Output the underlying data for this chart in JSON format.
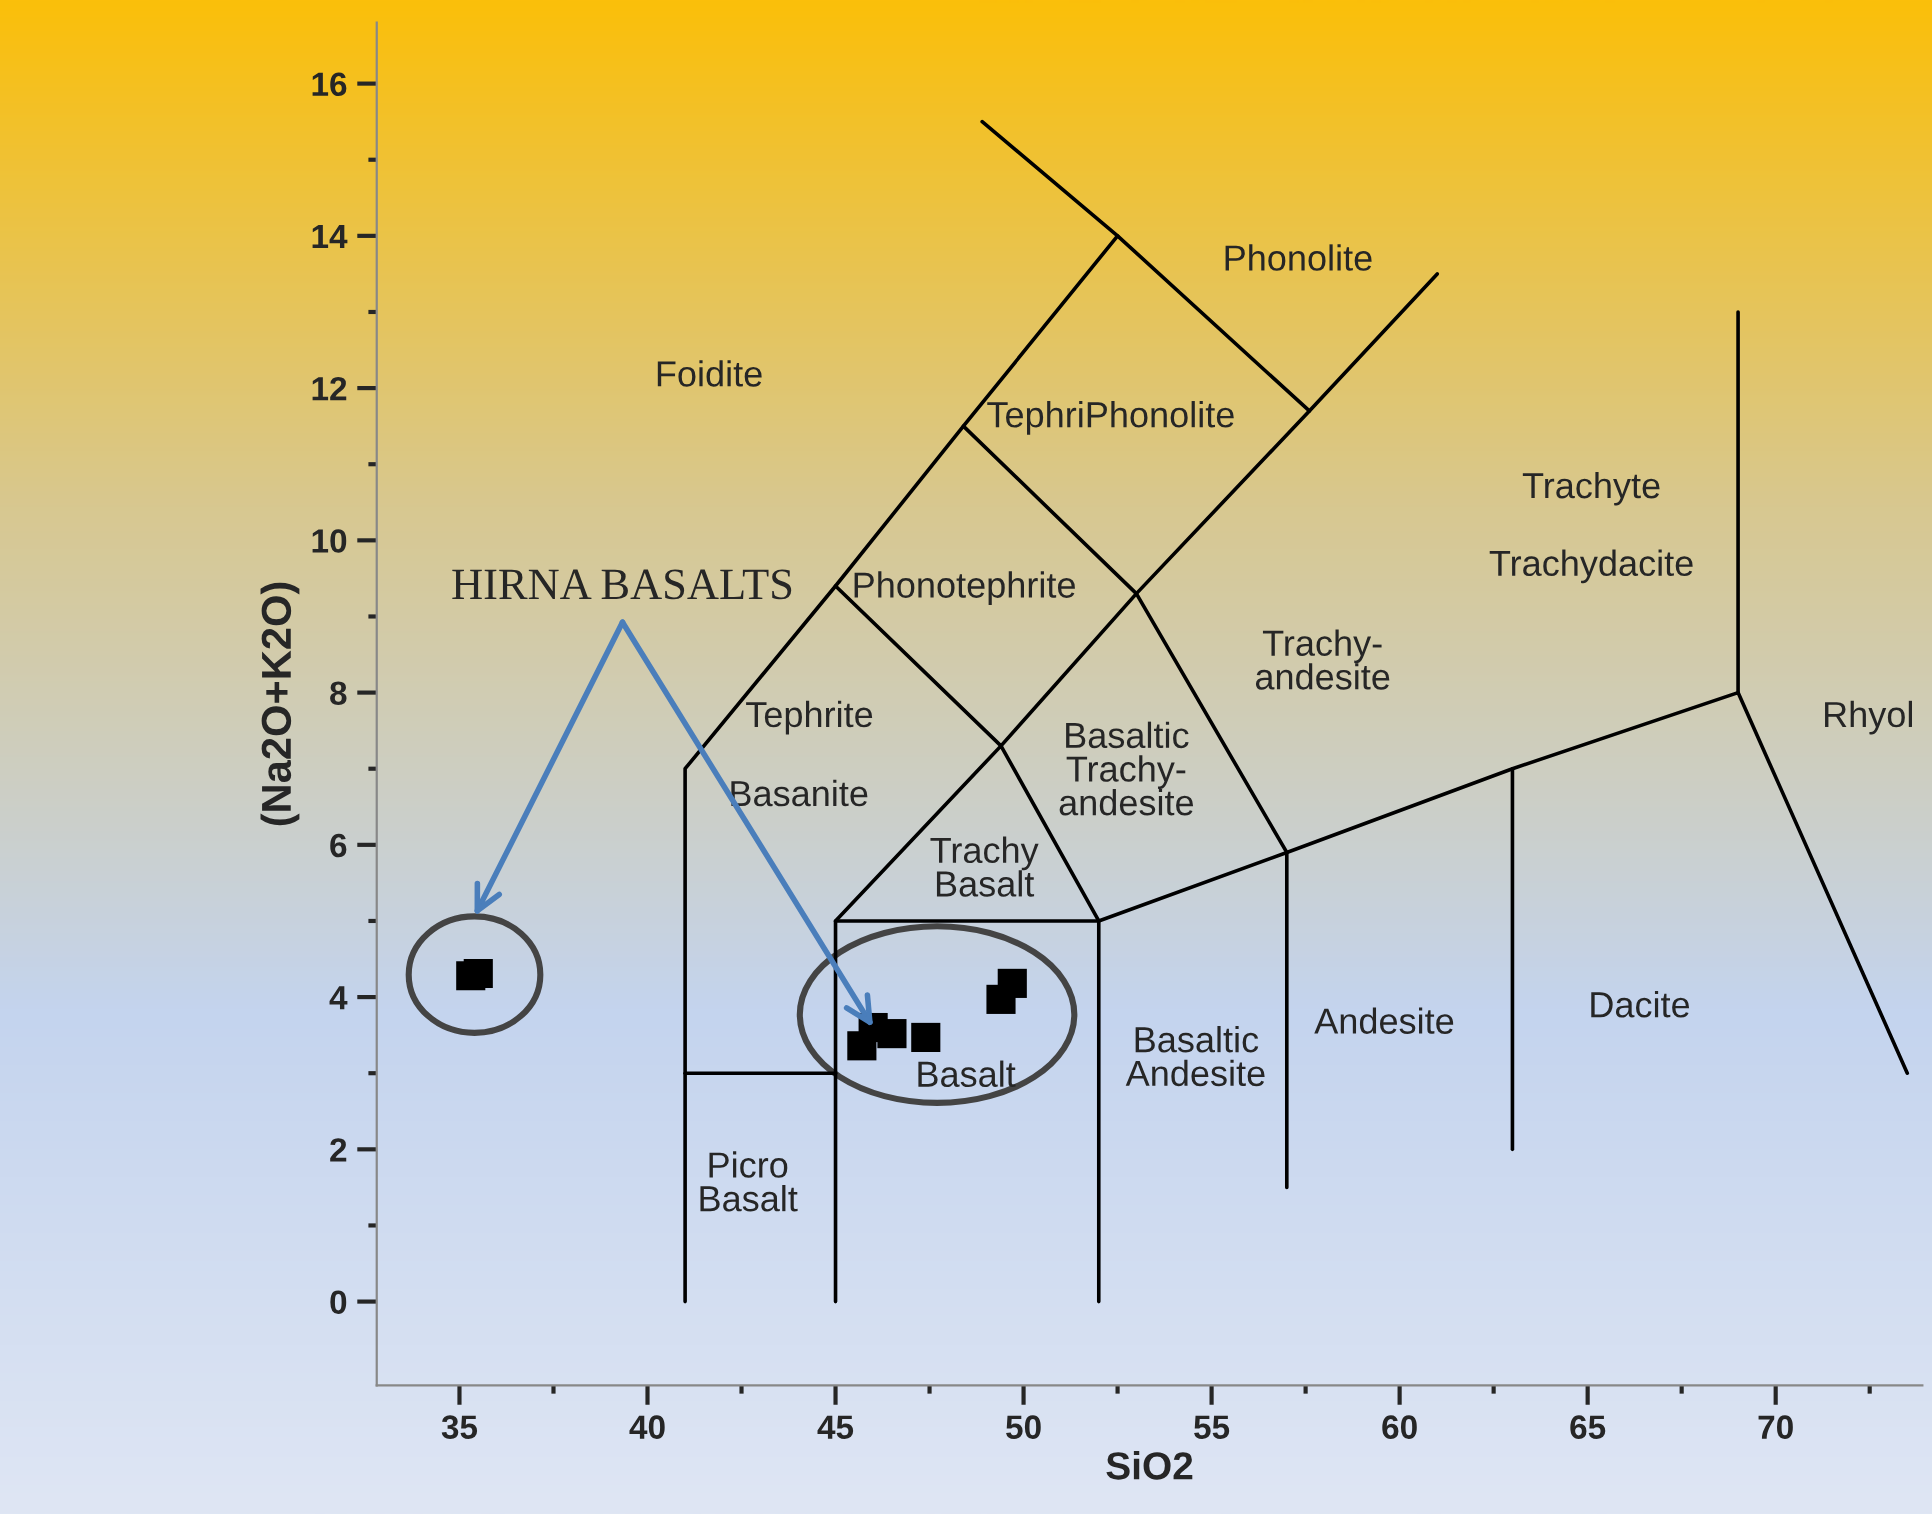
{
  "chart_data": {
    "type": "scatter",
    "xlabel": "SiO2",
    "ylabel": "(Na2O+K2O)",
    "xlim": [
      32.8,
      73.9
    ],
    "ylim": [
      -1.1,
      16.8
    ],
    "xticks": [
      35,
      {
        "value": 37.5,
        "label": null
      },
      40,
      {
        "value": 42.5,
        "label": null
      },
      45,
      {
        "value": 47.5,
        "label": null
      },
      50,
      {
        "value": 52.5,
        "label": null
      },
      55,
      {
        "value": 57.5,
        "label": null
      },
      60,
      {
        "value": 62.5,
        "label": null
      },
      65,
      {
        "value": 67.5,
        "label": null
      },
      70,
      {
        "value": 72.5,
        "label": null
      }
    ],
    "yticks": [
      0,
      {
        "value": 1,
        "label": null
      },
      2,
      {
        "value": 3,
        "label": null
      },
      4,
      {
        "value": 5,
        "label": null
      },
      6,
      {
        "value": 7,
        "label": null
      },
      8,
      {
        "value": 9,
        "label": null
      },
      10,
      {
        "value": 11,
        "label": null
      },
      12,
      {
        "value": 13,
        "label": null
      },
      14,
      {
        "value": 15,
        "label": null
      },
      16
    ],
    "grid": false,
    "marker": "square",
    "series": [
      {
        "color": "#000000",
        "x": [
          35.3,
          35.5
        ],
        "values": [
          4.28,
          4.31
        ]
      },
      {
        "color": "#000000",
        "x": [
          45.7,
          46.0,
          46.5,
          47.4,
          49.4,
          49.7
        ],
        "values": [
          3.36,
          3.6,
          3.52,
          3.47,
          3.97,
          4.18
        ]
      },
      {
        "type": "line",
        "color": "#000000",
        "marker": "none",
        "line_style": "solid",
        "x": [
          41,
          41,
          45,
          48.4,
          52.5
        ],
        "values": [
          0,
          7,
          9.4,
          11.5,
          14
        ]
      },
      {
        "type": "line",
        "color": "#000000",
        "marker": "none",
        "line_style": "solid",
        "x": [
          48.9,
          52.5,
          57.6
        ],
        "values": [
          15.5,
          14,
          11.7
        ]
      },
      {
        "type": "line",
        "color": "#000000",
        "marker": "none",
        "line_style": "solid",
        "x": [
          41,
          45
        ],
        "values": [
          3,
          3
        ]
      },
      {
        "type": "line",
        "color": "#000000",
        "marker": "none",
        "line_style": "solid",
        "x": [
          45,
          45,
          52,
          52
        ],
        "values": [
          0,
          5,
          5,
          0
        ]
      },
      {
        "type": "line",
        "color": "#000000",
        "marker": "none",
        "line_style": "solid",
        "x": [
          45,
          49.4,
          52
        ],
        "values": [
          5,
          7.3,
          5
        ]
      },
      {
        "type": "line",
        "color": "#000000",
        "marker": "none",
        "line_style": "solid",
        "x": [
          45,
          49.4,
          53,
          57.6,
          61
        ],
        "values": [
          9.4,
          7.3,
          9.3,
          11.7,
          13.5
        ]
      },
      {
        "type": "line",
        "color": "#000000",
        "marker": "none",
        "line_style": "solid",
        "x": [
          48.4,
          53,
          57,
          57
        ],
        "values": [
          11.5,
          9.3,
          5.9,
          1.5
        ]
      },
      {
        "type": "line",
        "color": "#000000",
        "marker": "none",
        "line_style": "solid",
        "x": [
          52,
          57,
          63,
          69,
          73.5
        ],
        "values": [
          5,
          5.9,
          7,
          8,
          3
        ]
      },
      {
        "type": "line",
        "color": "#000000",
        "marker": "none",
        "line_style": "solid",
        "x": [
          69,
          69
        ],
        "values": [
          8,
          13
        ]
      },
      {
        "type": "line",
        "color": "#000000",
        "marker": "none",
        "line_style": "solid",
        "x": [
          63,
          63
        ],
        "values": [
          7,
          2
        ]
      }
    ],
    "annotations": [
      "Foidite",
      "Phonolite",
      "TephriPhonolite",
      "Phonotephrite",
      "Tephrite",
      "Basanite",
      "Trachy\nBasalt",
      "Basaltic\nTrachy-\nandesite",
      "Trachy-\nandesite",
      "Trachyte",
      "Trachydacite",
      "Rhyol",
      "Picro\nBasalt",
      "Basalt",
      "Basaltic\nAndesite",
      "Andesite",
      "Dacite",
      {
        "text": "HIRNA BASALTS",
        "x": 46.0,
        "y": 3.6
      }
    ]
  }
}
